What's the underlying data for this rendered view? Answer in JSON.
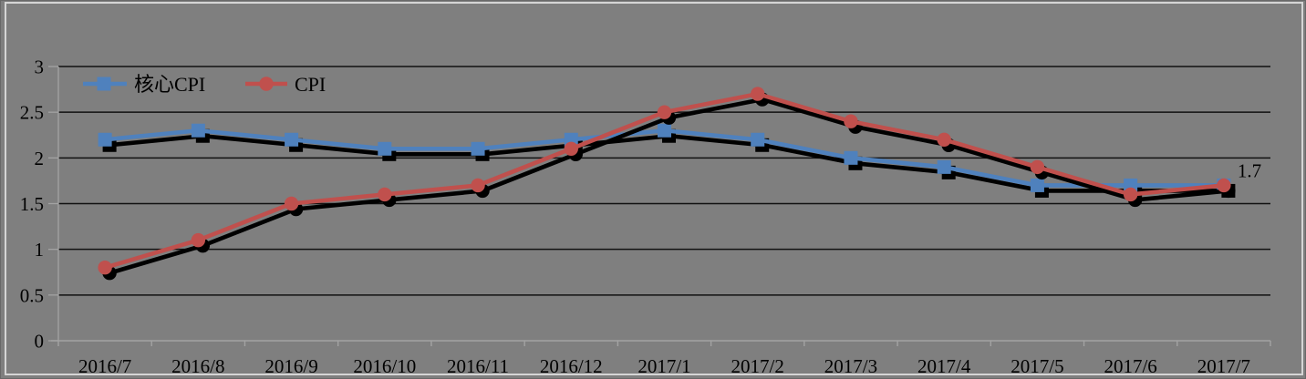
{
  "chart_data": {
    "type": "line",
    "title": "",
    "xlabel": "",
    "ylabel": "",
    "categories": [
      "2016/7",
      "2016/8",
      "2016/9",
      "2016/10",
      "2016/11",
      "2016/12",
      "2017/1",
      "2017/2",
      "2017/3",
      "2017/4",
      "2017/5",
      "2017/6",
      "2017/7"
    ],
    "series": [
      {
        "id": "core-cpi",
        "name": "核心CPI",
        "marker": "square",
        "color": "#4f81bd",
        "values": [
          2.2,
          2.3,
          2.2,
          2.1,
          2.1,
          2.2,
          2.3,
          2.2,
          2.0,
          1.9,
          1.7,
          1.7,
          1.7
        ]
      },
      {
        "id": "cpi",
        "name": "CPI",
        "marker": "circle",
        "color": "#c0504d",
        "values": [
          0.8,
          1.1,
          1.5,
          1.6,
          1.7,
          2.1,
          2.5,
          2.7,
          2.4,
          2.2,
          1.9,
          1.6,
          1.7
        ]
      }
    ],
    "ylim": [
      0,
      3
    ],
    "yticks": [
      0,
      0.5,
      1,
      1.5,
      2,
      2.5,
      3
    ],
    "ytick_labels": [
      "0",
      "0.5",
      "1",
      "1.5",
      "2",
      "2.5",
      "3"
    ],
    "grid": "horizontal",
    "legend_position": "top-inside-left",
    "annotations": [
      {
        "text": "1.7",
        "series": "CPI",
        "category": "2017/7"
      }
    ]
  },
  "legend": {
    "items": [
      {
        "label": "核心CPI"
      },
      {
        "label": "CPI"
      }
    ]
  },
  "colors": {
    "background": "#7f7f7f",
    "gridline": "#111111",
    "axis_light": "#a3a3a3",
    "text": "#000000",
    "shadow": "#000000",
    "frame_light": "#d5d5d5",
    "frame_dark": "#686868"
  }
}
